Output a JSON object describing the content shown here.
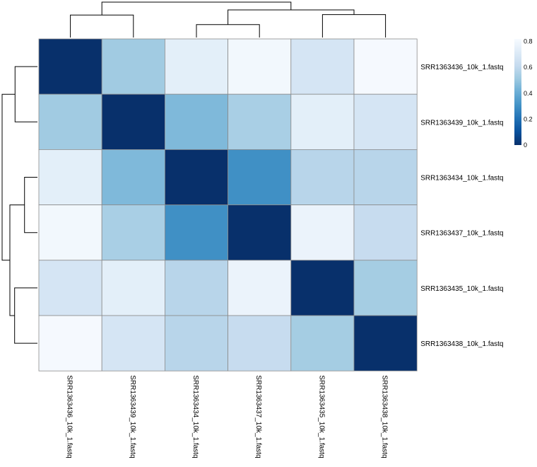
{
  "chart_data": {
    "type": "heatmap",
    "title": "",
    "rows": [
      "SRR1363436_10k_1.fastq",
      "SRR1363439_10k_1.fastq",
      "SRR1363434_10k_1.fastq",
      "SRR1363437_10k_1.fastq",
      "SRR1363435_10k_1.fastq",
      "SRR1363438_10k_1.fastq"
    ],
    "columns": [
      "SRR1363436_10k_1.fastq",
      "SRR1363439_10k_1.fastq",
      "SRR1363434_10k_1.fastq",
      "SRR1363437_10k_1.fastq",
      "SRR1363435_10k_1.fastq",
      "SRR1363438_10k_1.fastq"
    ],
    "values": [
      [
        0.0,
        0.52,
        0.74,
        0.8,
        0.68,
        0.81
      ],
      [
        0.52,
        0.0,
        0.45,
        0.54,
        0.74,
        0.68
      ],
      [
        0.74,
        0.45,
        0.0,
        0.3,
        0.58,
        0.58
      ],
      [
        0.8,
        0.54,
        0.3,
        0.0,
        0.77,
        0.62
      ],
      [
        0.68,
        0.74,
        0.58,
        0.77,
        0.0,
        0.53
      ],
      [
        0.81,
        0.68,
        0.58,
        0.62,
        0.53,
        0.0
      ]
    ],
    "colorscale": {
      "name": "Blues",
      "low_color": "#08306b",
      "high_color": "#f7fbff",
      "range": [
        0,
        0.82
      ],
      "ticks": [
        "0",
        "0.2",
        "0.4",
        "0.6",
        "0.8"
      ],
      "tick_values": [
        0,
        0.2,
        0.4,
        0.6,
        0.8
      ]
    },
    "dendrogram": {
      "order": [
        0,
        1,
        2,
        3,
        4,
        5
      ],
      "merges": [
        {
          "a": 2,
          "b": 3,
          "height": 0.3
        },
        {
          "a": 4,
          "b": 5,
          "height": 0.53
        },
        {
          "a": 0,
          "b": 1,
          "height": 0.52
        },
        {
          "a": "c0",
          "b": "c1",
          "height": 0.64
        },
        {
          "a": "c2",
          "b": "c3",
          "height": 0.82
        }
      ]
    },
    "grid_color": "#8c8c8c"
  }
}
